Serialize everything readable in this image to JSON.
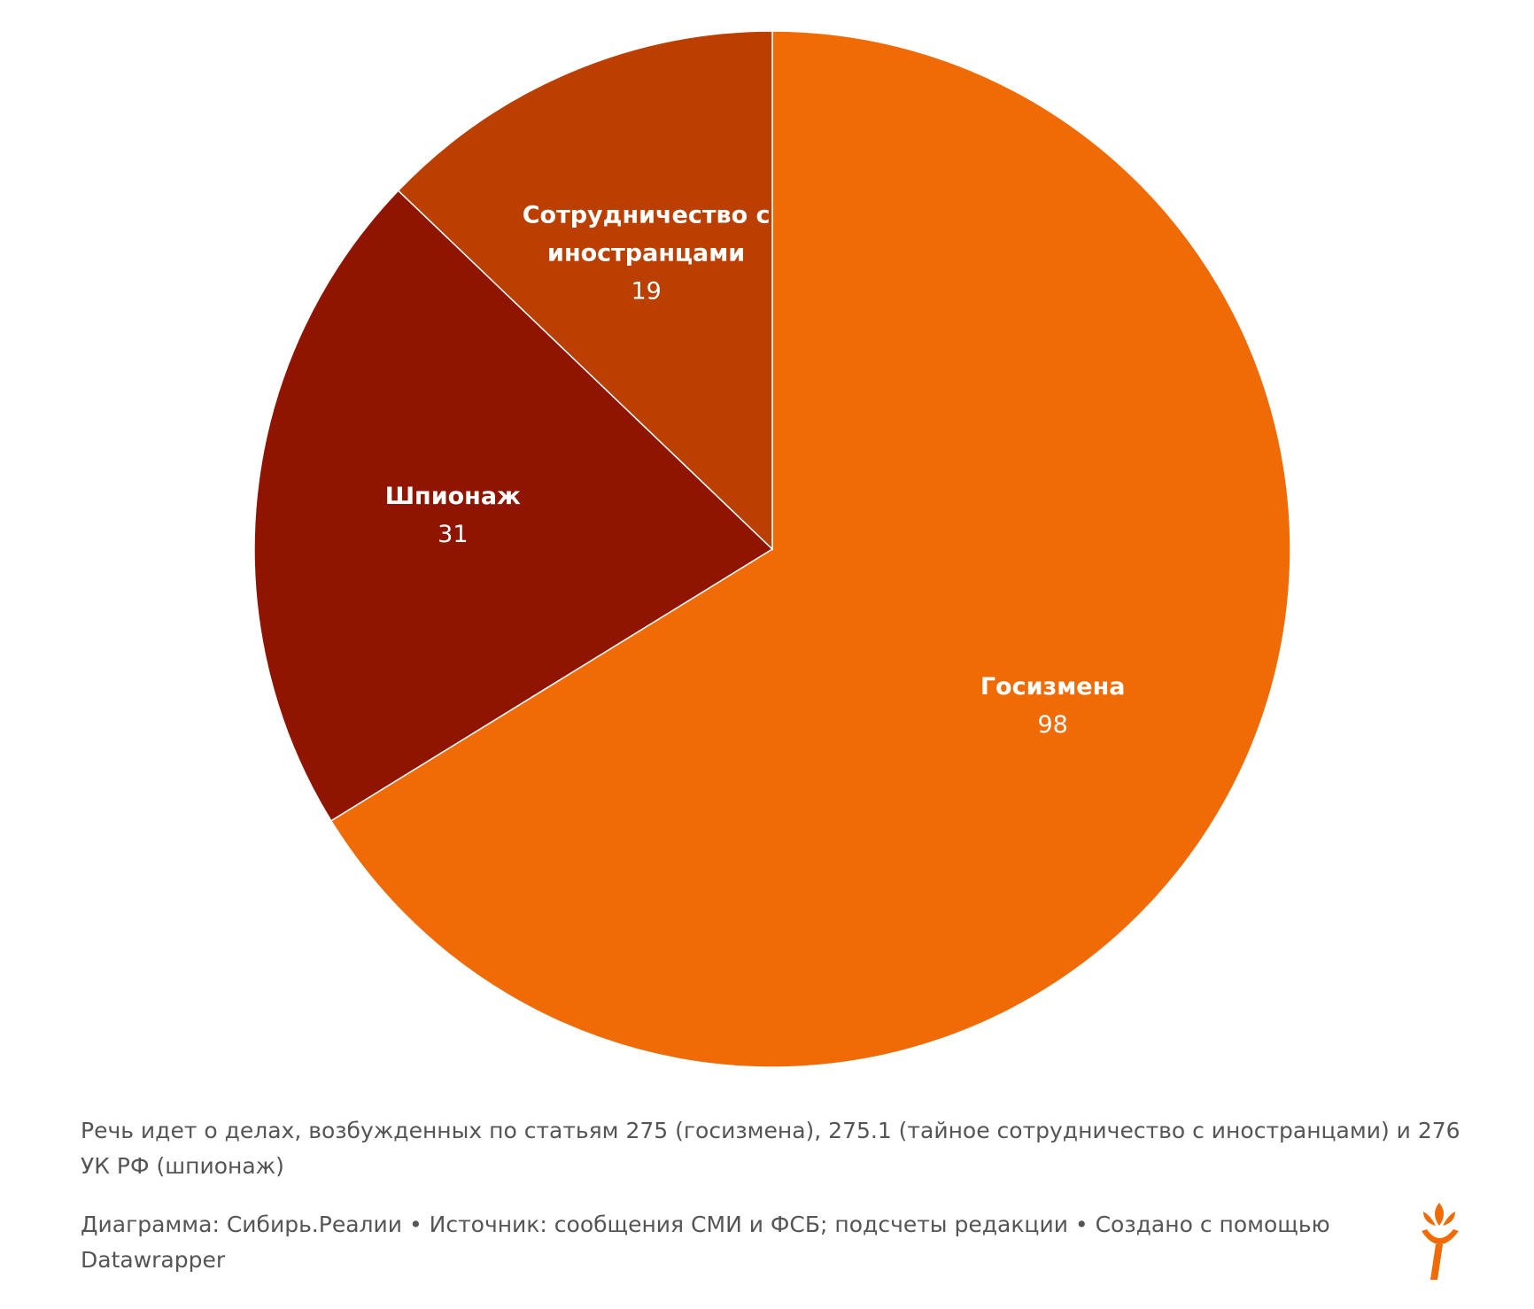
{
  "chart_data": {
    "type": "pie",
    "categories": [
      "Госизмена",
      "Шпионаж",
      "Сотрудничество с иностранцами"
    ],
    "values": [
      98,
      31,
      19
    ],
    "colors": [
      "#f06a05",
      "#8f1500",
      "#ba3f00"
    ],
    "notes": "Речь идет о делах, возбужденных по статьям 275 (госизмена), 275.1 (тайное сотрудничество с иностранцами) и 276 УК РФ (шпионаж)",
    "footer": "Диаграмма: Сибирь.Реалии • Источник: сообщения СМИ и ФСБ; подсчеты редакции • Создано с помощью Datawrapper"
  }
}
